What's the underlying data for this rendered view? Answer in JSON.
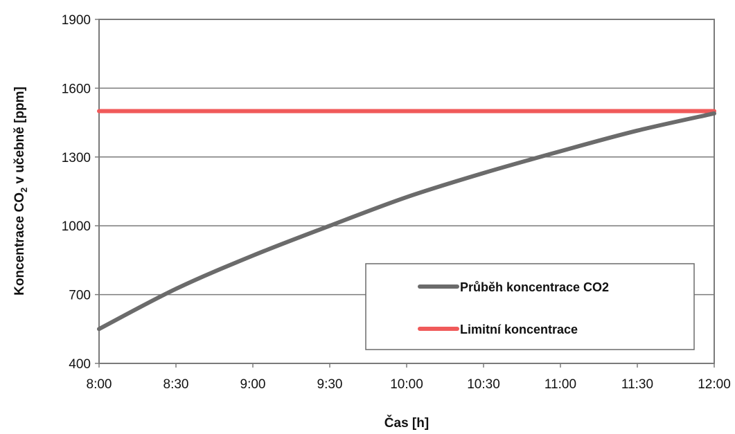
{
  "chart_data": {
    "type": "line",
    "xlabel": "Čas [h]",
    "ylabel_parts": {
      "before": "Koncentrace CO",
      "subscript": "2",
      "after": " v učebně [ppm]"
    },
    "x_tick_labels": [
      "8:00",
      "8:30",
      "9:00",
      "9:30",
      "10:00",
      "10:30",
      "11:00",
      "11:30",
      "12:00"
    ],
    "xlim": [
      0,
      240
    ],
    "x_unit": "minutes after 8:00",
    "y_ticks": [
      400,
      700,
      1000,
      1300,
      1600,
      1900
    ],
    "ylim": [
      400,
      1900
    ],
    "grid": true,
    "legend_position": "bottom-right",
    "series": [
      {
        "name": "Průběh koncentrace CO2",
        "color": "#6b6b6b",
        "x": [
          0,
          30,
          60,
          90,
          120,
          150,
          180,
          210,
          240
        ],
        "y": [
          550,
          725,
          870,
          1000,
          1125,
          1230,
          1325,
          1415,
          1490
        ]
      },
      {
        "name": "Limitní koncentrace",
        "color": "#f05a5a",
        "x": [
          0,
          240
        ],
        "y": [
          1500,
          1500
        ]
      }
    ]
  }
}
